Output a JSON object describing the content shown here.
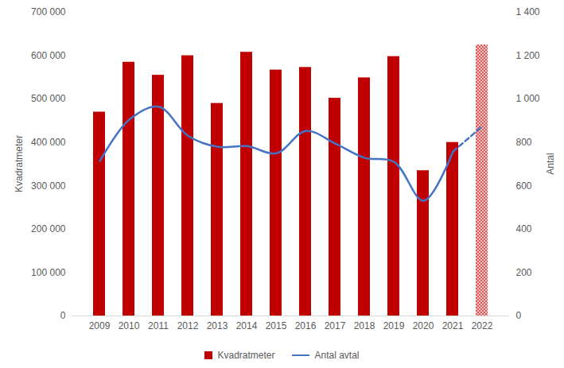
{
  "chart_data": {
    "type": "bar",
    "categories": [
      "2009",
      "2010",
      "2011",
      "2012",
      "2013",
      "2014",
      "2015",
      "2016",
      "2017",
      "2018",
      "2019",
      "2020",
      "2021",
      "2022"
    ],
    "series": [
      {
        "name": "Kvadratmeter",
        "type": "bar",
        "color": "#c00000",
        "values": [
          470000,
          585000,
          555000,
          600000,
          490000,
          608000,
          567000,
          573000,
          502000,
          549000,
          598000,
          335000,
          400000,
          625000
        ]
      },
      {
        "name": "Antal avtal",
        "type": "line",
        "color": "#4472c4",
        "axis": "y2",
        "values": [
          714,
          905,
          965,
          830,
          780,
          783,
          750,
          853,
          795,
          729,
          710,
          531,
          758,
          875
        ]
      }
    ],
    "ylabel": "Kvadratmeter",
    "y2label": "Antal",
    "ylim": [
      0,
      700000
    ],
    "yticks": [
      0,
      {
        "value": 100000,
        "label": "100 000"
      },
      {
        "value": 200000,
        "label": "200 000"
      },
      {
        "value": 300000,
        "label": "300 000"
      },
      {
        "value": 400000,
        "label": "400 000"
      },
      {
        "value": 500000,
        "label": "500 000"
      },
      {
        "value": 600000,
        "label": "600 000"
      },
      {
        "value": 700000,
        "label": "700 000"
      }
    ],
    "y2lim": [
      0,
      1400
    ],
    "y2ticks": [
      0,
      200,
      400,
      600,
      800,
      {
        "value": 1000,
        "label": "1 000"
      },
      {
        "value": 1200,
        "label": "1 200"
      },
      {
        "value": 1400,
        "label": "1 400"
      }
    ],
    "grid": false,
    "legend": "bottom"
  }
}
